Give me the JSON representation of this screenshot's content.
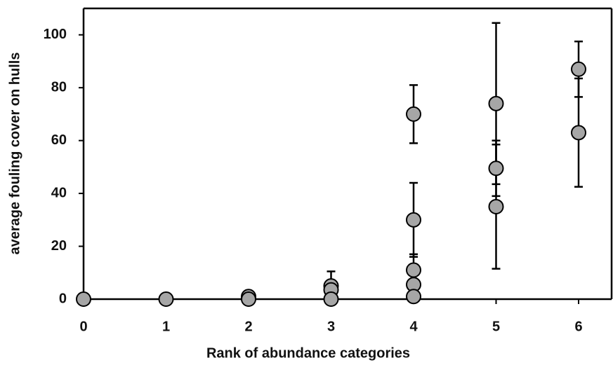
{
  "chart_data": {
    "type": "scatter",
    "x_label": "Rank of abundance categories",
    "y_label": "average fouling cover on hulls",
    "x": [
      0,
      1,
      2,
      2,
      3,
      3,
      3,
      4,
      4,
      4,
      4,
      4,
      5,
      5,
      5,
      6,
      6
    ],
    "values": [
      0,
      0,
      1,
      0,
      5,
      3.5,
      0,
      70,
      30,
      11,
      5.5,
      1,
      74,
      49.5,
      35,
      87,
      63
    ],
    "errors": [
      null,
      null,
      null,
      null,
      5.5,
      null,
      null,
      11,
      14,
      6,
      null,
      null,
      30.5,
      10.5,
      23.5,
      10.5,
      20.5
    ],
    "color": "#a6a6a6",
    "xlim": [
      0,
      6.4
    ],
    "ylim": [
      0,
      110
    ],
    "xticks": [
      0,
      1,
      2,
      3,
      4,
      5,
      6
    ],
    "yticks": [
      0,
      20,
      40,
      60,
      80,
      100
    ],
    "grid": false
  }
}
